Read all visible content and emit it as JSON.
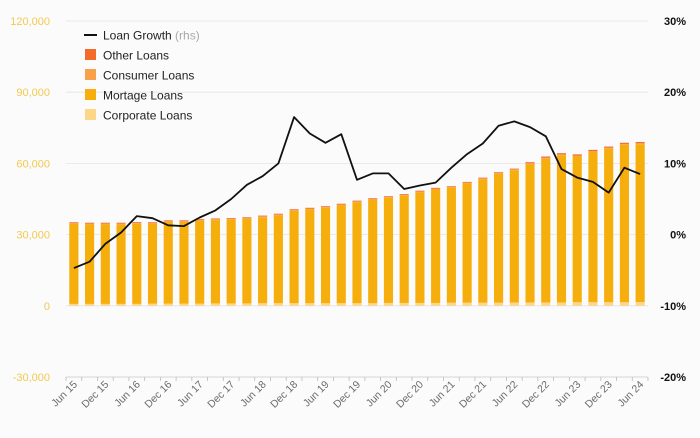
{
  "chart_data": {
    "type": "bar",
    "stacked": true,
    "title": "",
    "xlabel": "",
    "ylabel": "",
    "ylim": [
      -30000,
      120000
    ],
    "y2lim": [
      -20,
      30
    ],
    "grid": true,
    "legend_position": "top-left",
    "left_ticks": [
      "-30,000",
      "0",
      "30,000",
      "60,000",
      "90,000",
      "120,000"
    ],
    "right_ticks": [
      "-20%",
      "-10%",
      "0%",
      "10%",
      "20%",
      "30%"
    ],
    "x_tick_labels": [
      "Jun 15",
      "Dec 15",
      "Jun 16",
      "Dec 16",
      "Jun 17",
      "Dec 17",
      "Jun 18",
      "Dec 18",
      "Jun 19",
      "Dec 19",
      "Jun 20",
      "Dec 20",
      "Jun 21",
      "Dec 21",
      "Jun 22",
      "Dec 22",
      "Jun 23",
      "Dec 23",
      "Jun 24"
    ],
    "legend": [
      {
        "label": "Loan Growth",
        "note": "(rhs)",
        "kind": "line",
        "color": "#111111"
      },
      {
        "label": "Other Loans",
        "kind": "box",
        "color": "#f26b2a"
      },
      {
        "label": "Consumer Loans",
        "kind": "box",
        "color": "#f9a04a"
      },
      {
        "label": "Mortage Loans",
        "kind": "box",
        "color": "#f5ae0c"
      },
      {
        "label": "Corporate Loans",
        "kind": "box",
        "color": "#fdd68a"
      }
    ],
    "quarters": [
      "Jun 15",
      "Sep 15",
      "Dec 15",
      "Mar 16",
      "Jun 16",
      "Sep 16",
      "Dec 16",
      "Mar 17",
      "Jun 17",
      "Sep 17",
      "Dec 17",
      "Mar 18",
      "Jun 18",
      "Sep 18",
      "Dec 18",
      "Mar 19",
      "Jun 19",
      "Sep 19",
      "Dec 19",
      "Mar 20",
      "Jun 20",
      "Sep 20",
      "Dec 20",
      "Mar 21",
      "Jun 21",
      "Sep 21",
      "Dec 21",
      "Mar 22",
      "Jun 22",
      "Sep 22",
      "Dec 22",
      "Mar 23",
      "Jun 23",
      "Sep 23",
      "Dec 23",
      "Mar 24",
      "Jun 24"
    ],
    "series": [
      {
        "name": "Corporate Loans",
        "color": "#fdd68a",
        "values": [
          800,
          800,
          800,
          800,
          800,
          900,
          900,
          900,
          900,
          1000,
          1000,
          1000,
          1100,
          1100,
          1100,
          1100,
          1100,
          1100,
          1100,
          1100,
          1200,
          1200,
          1200,
          1200,
          1300,
          1300,
          1300,
          1300,
          1400,
          1400,
          1400,
          1400,
          1500,
          1500,
          1500,
          1500,
          1600
        ]
      },
      {
        "name": "Mortage Loans",
        "color": "#f5ae0c",
        "values": [
          33700,
          33500,
          33500,
          33500,
          33800,
          33600,
          34400,
          34400,
          35000,
          35100,
          35300,
          35600,
          36200,
          37000,
          38900,
          39500,
          40200,
          41200,
          42500,
          43500,
          44300,
          45200,
          46600,
          47800,
          48400,
          50200,
          52000,
          54300,
          55700,
          58300,
          60600,
          62000,
          61400,
          63300,
          64700,
          66300,
          66500
        ]
      },
      {
        "name": "Consumer Loans",
        "color": "#f9a04a",
        "values": [
          400,
          400,
          400,
          400,
          400,
          400,
          400,
          400,
          400,
          400,
          400,
          400,
          400,
          400,
          400,
          400,
          400,
          400,
          400,
          400,
          400,
          400,
          400,
          400,
          400,
          400,
          400,
          400,
          400,
          400,
          400,
          400,
          400,
          400,
          400,
          400,
          400
        ]
      },
      {
        "name": "Other Loans",
        "color": "#f26b2a",
        "values": [
          300,
          300,
          300,
          300,
          300,
          300,
          300,
          300,
          300,
          300,
          300,
          300,
          300,
          300,
          300,
          300,
          300,
          300,
          300,
          300,
          300,
          300,
          300,
          300,
          300,
          300,
          300,
          300,
          300,
          400,
          500,
          500,
          500,
          500,
          500,
          500,
          500
        ]
      },
      {
        "name": "Loan Growth",
        "axis": "right",
        "type": "line",
        "color": "#111111",
        "values": [
          -4.7,
          -3.8,
          -1.3,
          0.3,
          2.6,
          2.3,
          1.3,
          1.2,
          2.4,
          3.4,
          5.0,
          7.0,
          8.2,
          10.0,
          16.5,
          14.2,
          12.9,
          14.1,
          7.7,
          8.6,
          8.6,
          6.4,
          6.9,
          7.3,
          9.4,
          11.3,
          12.8,
          15.3,
          15.9,
          15.1,
          13.8,
          9.2,
          8.0,
          7.4,
          5.9,
          9.4,
          8.5
        ]
      }
    ]
  }
}
